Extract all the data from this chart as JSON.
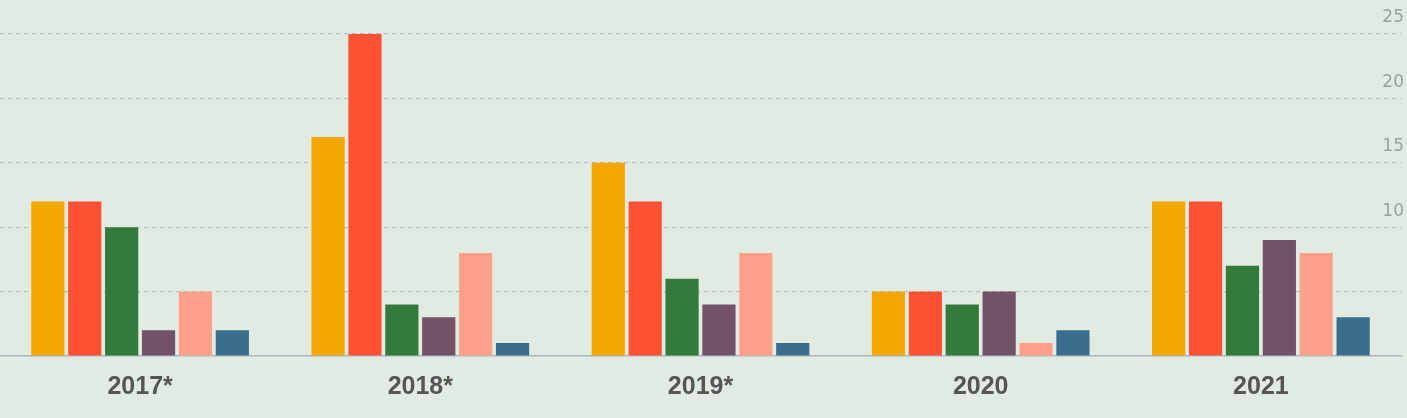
{
  "chart_data": {
    "type": "bar",
    "categories": [
      "2017*",
      "2018*",
      "2019*",
      "2020",
      "2021"
    ],
    "series": [
      {
        "color": "#f2a800",
        "values": [
          12,
          17,
          15,
          5,
          12
        ]
      },
      {
        "color": "#ff5133",
        "values": [
          12,
          25,
          12,
          5,
          12
        ]
      },
      {
        "color": "#347a3a",
        "values": [
          10,
          4,
          6,
          4,
          7
        ]
      },
      {
        "color": "#735166",
        "values": [
          2,
          3,
          4,
          5,
          9
        ]
      },
      {
        "color": "#ffa18a",
        "values": [
          5,
          8,
          8,
          1,
          8
        ]
      },
      {
        "color": "#3a6d8c",
        "values": [
          2,
          1,
          1,
          2,
          3
        ]
      }
    ],
    "ylim": [
      0,
      25
    ],
    "yticks": [
      {
        "value": 0,
        "label": null
      },
      {
        "value": 5,
        "label": null
      },
      10,
      15,
      20,
      25
    ],
    "grid": "y",
    "legend": false
  }
}
